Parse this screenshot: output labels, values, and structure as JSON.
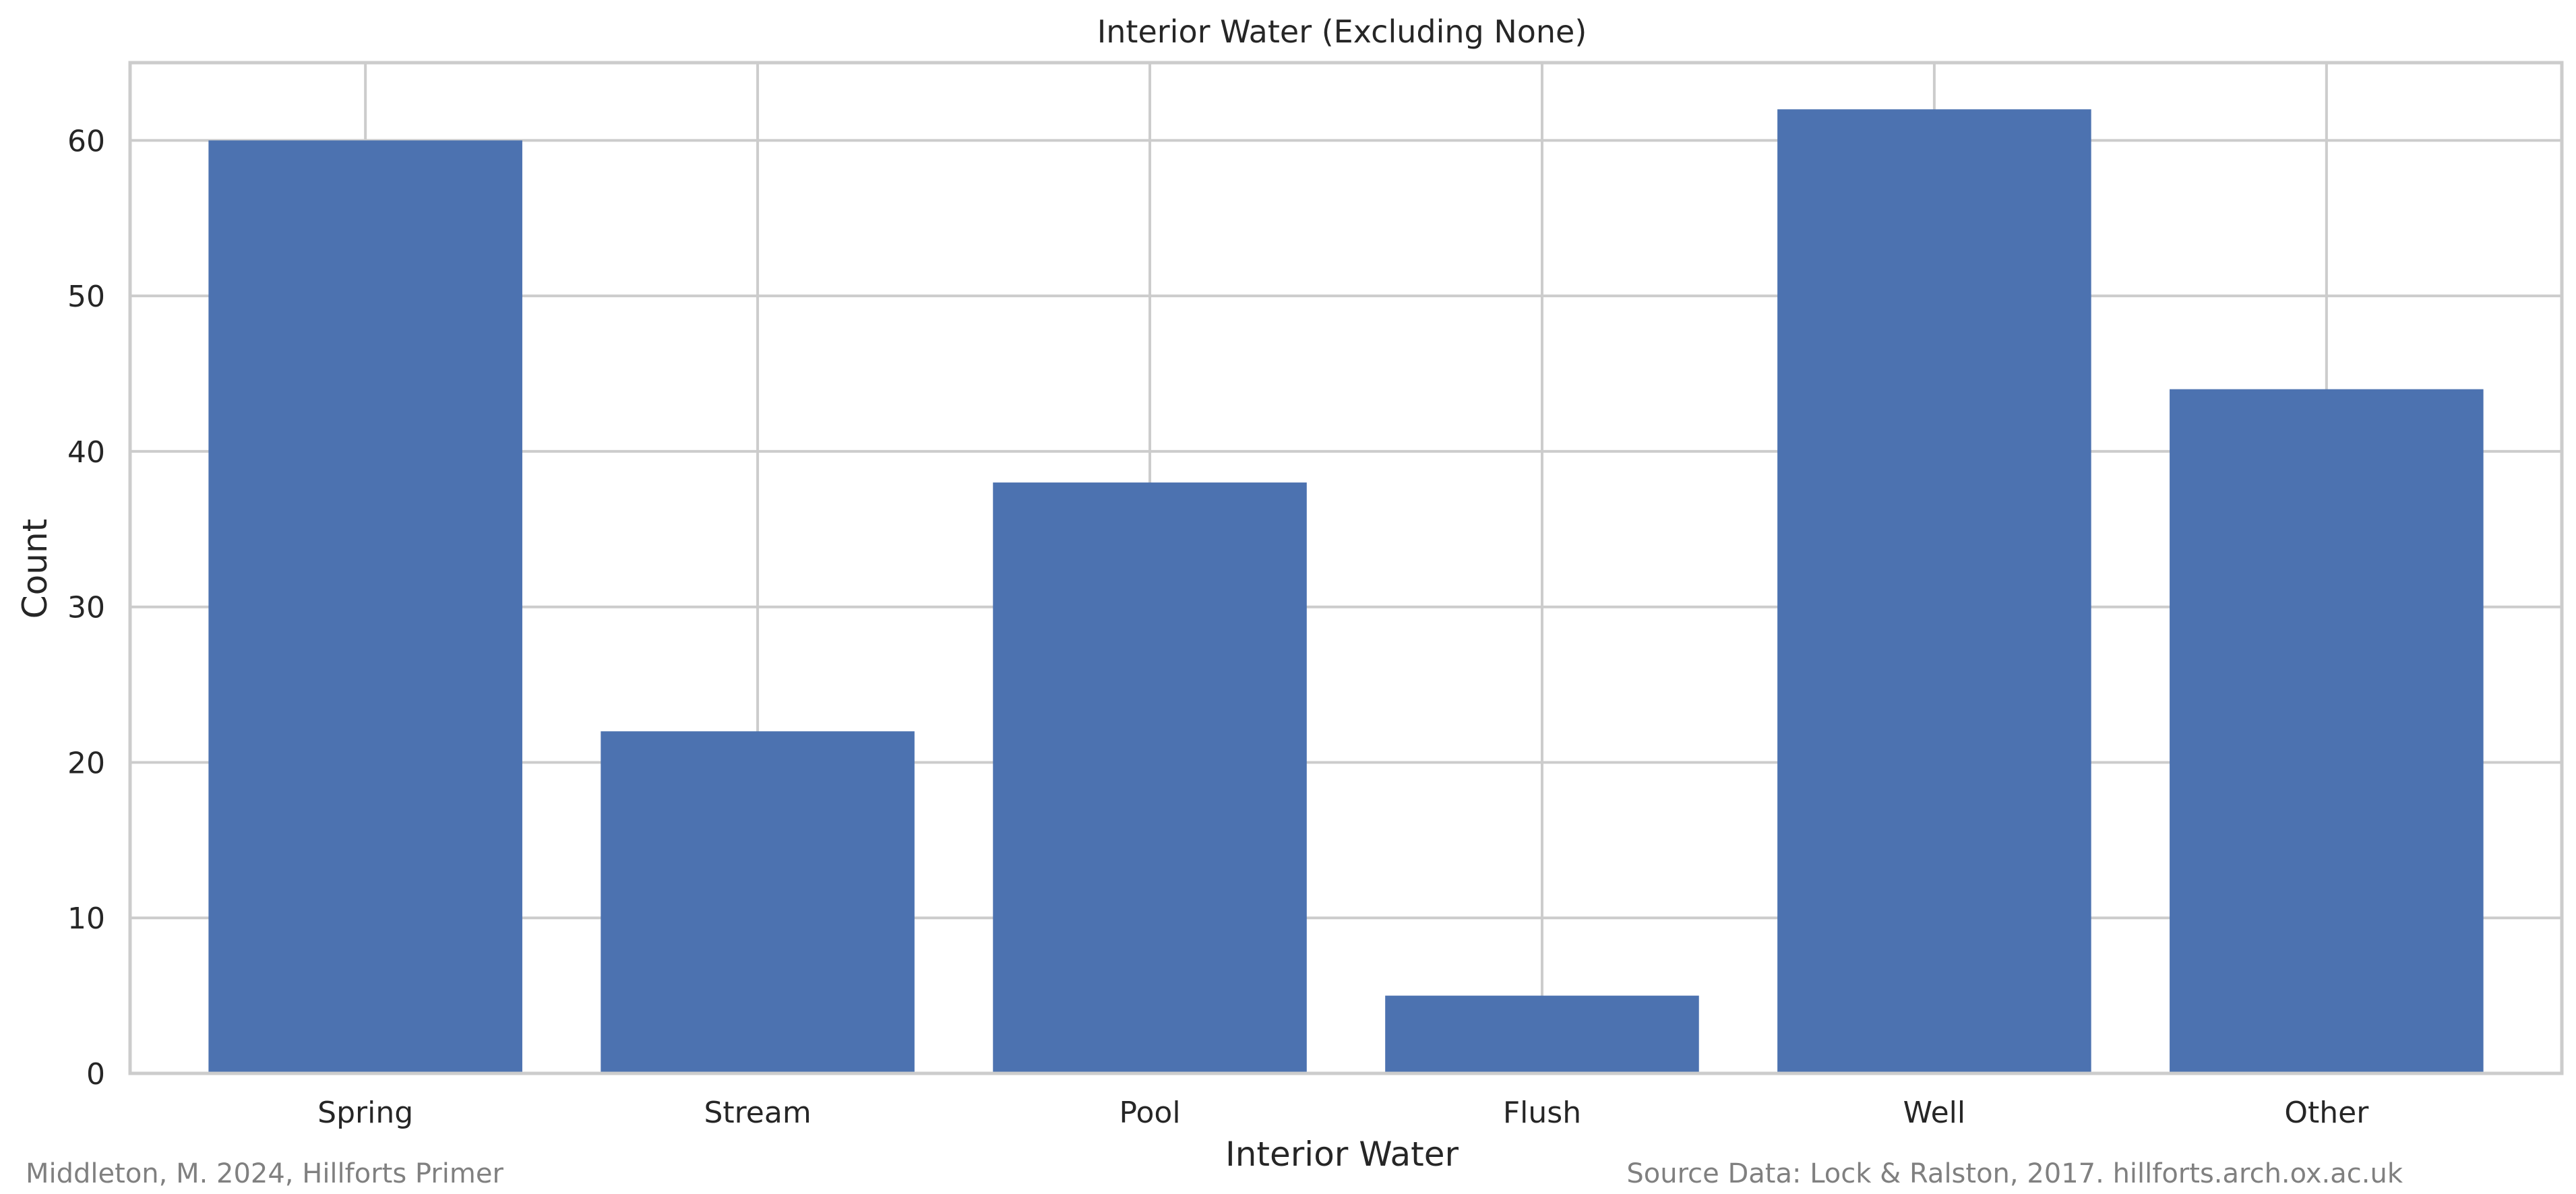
{
  "chart_data": {
    "type": "bar",
    "title": "Interior Water (Excluding None)",
    "xlabel": "Interior Water",
    "ylabel": "Count",
    "categories": [
      "Spring",
      "Stream",
      "Pool",
      "Flush",
      "Well",
      "Other"
    ],
    "values": [
      60,
      22,
      38,
      5,
      62,
      44
    ],
    "ylim": [
      0,
      65
    ],
    "yticks": [
      0,
      10,
      20,
      30,
      40,
      50,
      60
    ],
    "grid": true,
    "bar_color": "#4c72b0",
    "grid_color": "#cccccc"
  },
  "footer": {
    "left": "Middleton, M. 2024, Hillforts Primer",
    "right": "Source Data: Lock & Ralston, 2017. hillforts.arch.ox.ac.uk"
  }
}
